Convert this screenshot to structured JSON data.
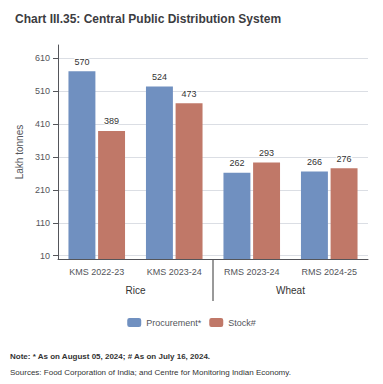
{
  "chart_data": {
    "type": "bar",
    "title": "Chart III.35: Central Public Distribution System",
    "categories": [
      "KMS 2022-23",
      "KMS 2023-24",
      "RMS 2023-24",
      "RMS 2024-25"
    ],
    "series": [
      {
        "name": "Procurement*",
        "color": "#7090C0",
        "values": [
          570,
          524,
          262,
          266
        ]
      },
      {
        "name": "Stock#",
        "color": "#C07868",
        "values": [
          389,
          473,
          293,
          276
        ]
      }
    ],
    "group_labels": [
      "Rice",
      "Wheat"
    ],
    "ylabel": "Lakh tonnes",
    "ylim": [
      0,
      650
    ],
    "yticks": [
      10,
      110,
      210,
      310,
      410,
      510,
      610
    ],
    "grid": true,
    "legend": "bottom",
    "data_labels": true,
    "note": "Note: * As on August 05, 2024; # As on July 16, 2024.",
    "sources": "Sources: Food Corporation of India; and Centre for Monitoring Indian Economy."
  }
}
